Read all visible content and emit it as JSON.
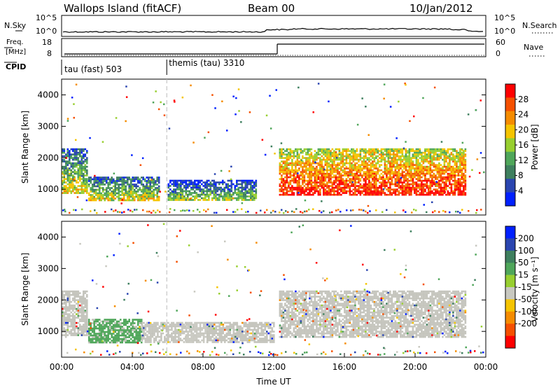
{
  "header": {
    "station": "Wallops Island (fitACF)",
    "beam": "Beam 00",
    "date": "10/Jan/2012"
  },
  "noise_panel": {
    "left_label": "N.Sky",
    "right_label": "N.Search",
    "tick_top": "10^5",
    "tick_bottom": "10^0"
  },
  "freq_panel": {
    "label_line1": "Freq.",
    "label_line2": "[MHz]",
    "left_ticks": [
      "18",
      "8"
    ],
    "right_label": "Nave",
    "right_ticks": [
      "60",
      "0"
    ],
    "freq_step_x_hours": 12.2
  },
  "cpid": {
    "label": "CPID",
    "segments": [
      {
        "start_hours": 0.0,
        "text": "tau (fast) 503"
      },
      {
        "start_hours": 5.95,
        "text": "themis (tau) 3310"
      }
    ]
  },
  "colors": {
    "power": [
      "#0020ff",
      "#2a45b0",
      "#3e7f5e",
      "#4fa65a",
      "#98cf30",
      "#f5c400",
      "#f58c00",
      "#f55000",
      "#ff0000"
    ],
    "velocity": [
      "#0020ff",
      "#2a45b0",
      "#3e7f5e",
      "#4fa65a",
      "#98cf30",
      "#c8c8c0",
      "#f5c400",
      "#f58c00",
      "#f55000",
      "#ff0000"
    ],
    "ground_scatter": "#c4c4bc"
  },
  "chart_data": [
    {
      "type": "heatmap",
      "name_label": "Power panel",
      "ylabel": "Slant Range [km]",
      "xlim_hours": [
        0,
        24
      ],
      "ylim_km": [
        180,
        4500
      ],
      "ytick_labels": [
        "1000",
        "2000",
        "3000",
        "4000"
      ],
      "colorbar": {
        "label": "Power [dB]",
        "ticks": [
          "4",
          "8",
          "12",
          "16",
          "20",
          "24",
          "28"
        ],
        "range": [
          0,
          32
        ]
      },
      "echo_regions": [
        {
          "t_start": 0.0,
          "t_end": 1.4,
          "r_low": 900,
          "r_high": 2300,
          "dominant_db": 16
        },
        {
          "t_start": 1.5,
          "t_end": 5.5,
          "r_low": 650,
          "r_high": 1400,
          "dominant_db": 16
        },
        {
          "t_start": 6.0,
          "t_end": 11.0,
          "r_low": 650,
          "r_high": 1300,
          "dominant_db": 14
        },
        {
          "t_start": 12.3,
          "t_end": 22.8,
          "r_low": 850,
          "r_high": 2300,
          "dominant_db": 26
        }
      ]
    },
    {
      "type": "heatmap",
      "name_label": "Velocity panel",
      "ylabel": "Slant Range [km]",
      "xlabel": "Time UT",
      "xlim_hours": [
        0,
        24
      ],
      "ylim_km": [
        180,
        4500
      ],
      "xtick_labels": [
        "00:00",
        "04:00",
        "08:00",
        "12:00",
        "16:00",
        "20:00",
        "00:00"
      ],
      "ytick_labels": [
        "1000",
        "2000",
        "3000",
        "4000"
      ],
      "colorbar": {
        "label": "Velocity [m s⁻¹]",
        "ticks": [
          "200",
          "100",
          "50",
          "15",
          "-15",
          "-50",
          "-100",
          "-200"
        ],
        "levels": [
          250,
          200,
          100,
          50,
          15,
          -15,
          -50,
          -100,
          -200,
          -250
        ]
      },
      "echo_regions": [
        {
          "t_start": 0.0,
          "t_end": 1.4,
          "r_low": 900,
          "r_high": 2300,
          "dominant": "ground"
        },
        {
          "t_start": 1.5,
          "t_end": 4.5,
          "r_low": 650,
          "r_high": 1400,
          "dominant_ms": 30
        },
        {
          "t_start": 4.5,
          "t_end": 7.0,
          "r_low": 650,
          "r_high": 1300,
          "dominant": "ground"
        },
        {
          "t_start": 7.0,
          "t_end": 8.2,
          "r_low": 650,
          "r_high": 1300,
          "dominant_ms": -40
        },
        {
          "t_start": 8.2,
          "t_end": 12.0,
          "r_low": 650,
          "r_high": 1300,
          "dominant": "ground"
        },
        {
          "t_start": 12.3,
          "t_end": 22.8,
          "r_low": 850,
          "r_high": 2300,
          "dominant": "ground"
        }
      ]
    }
  ]
}
